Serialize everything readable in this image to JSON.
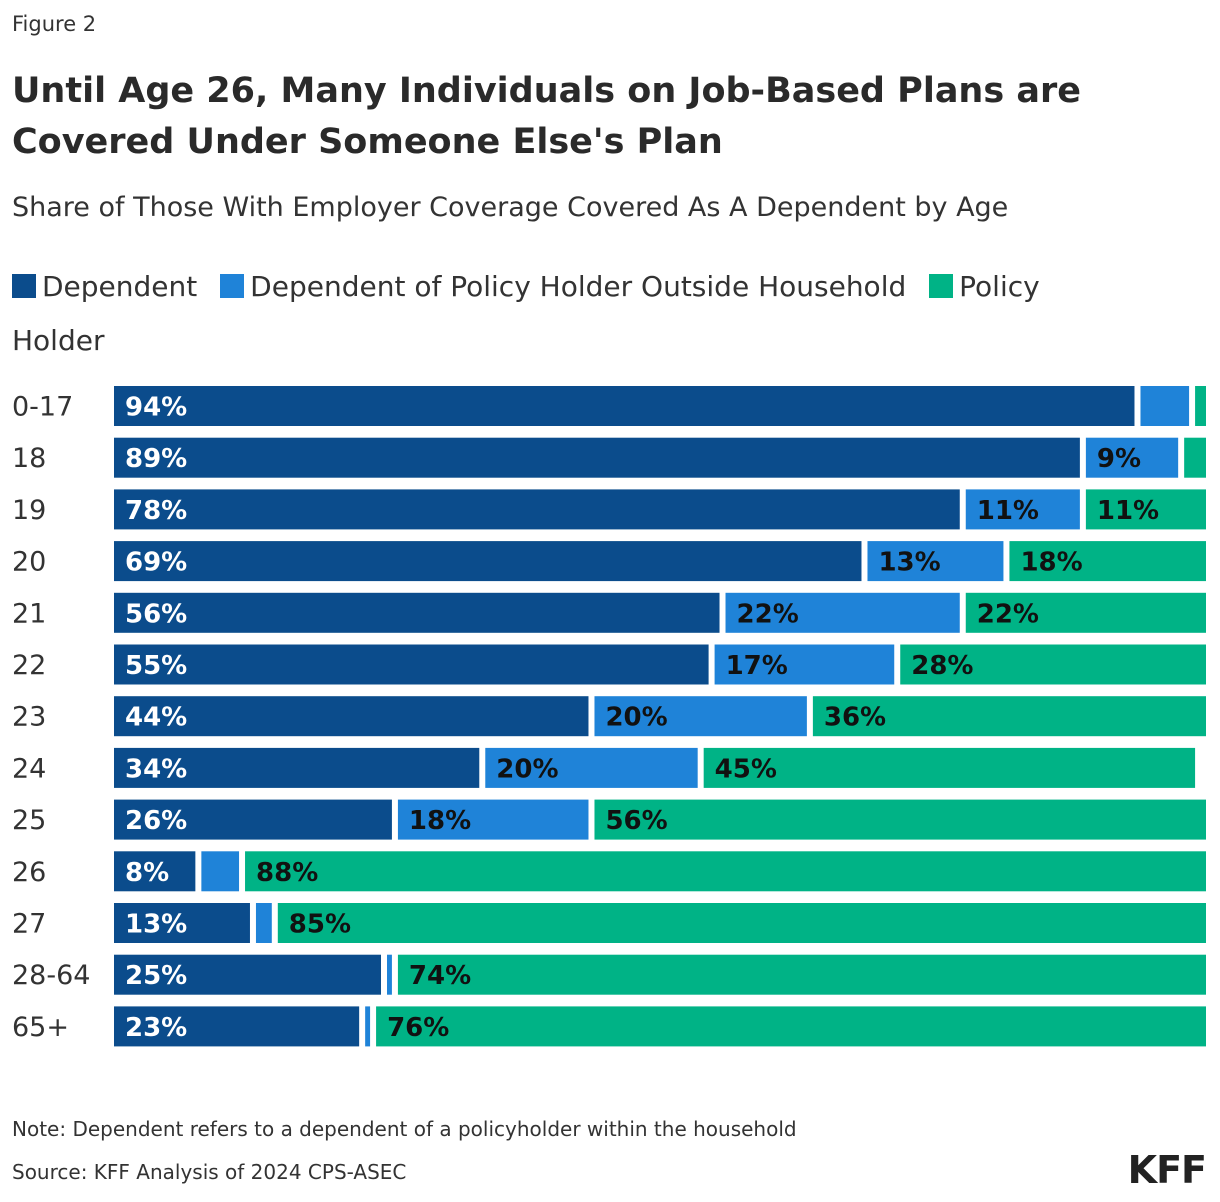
{
  "figure_label": "Figure 2",
  "chart_data": {
    "type": "stacked-bar-horizontal",
    "title": "Until Age 26, Many Individuals on Job-Based Plans are Covered Under Someone Else's Plan",
    "subtitle": "Share of Those With Employer Coverage Covered As A Dependent by Age",
    "categories": [
      "0-17",
      "18",
      "19",
      "20",
      "21",
      "22",
      "23",
      "24",
      "25",
      "26",
      "27",
      "28-64",
      "65+"
    ],
    "xlim": [
      0,
      100
    ],
    "series": [
      {
        "name": "Dependent",
        "color": "#0b4c8c",
        "values": [
          94,
          89,
          78,
          69,
          56,
          55,
          44,
          34,
          26,
          8,
          13,
          25,
          23
        ],
        "value_labels": [
          "94%",
          "89%",
          "78%",
          "69%",
          "56%",
          "55%",
          "44%",
          "34%",
          "26%",
          "8%",
          "13%",
          "25%",
          "23%"
        ]
      },
      {
        "name": "Dependent of Policy Holder Outside Household",
        "color": "#1f83d8",
        "values": [
          5,
          9,
          11,
          13,
          22,
          17,
          20,
          20,
          18,
          4,
          2,
          1,
          1
        ],
        "value_labels": [
          null,
          "9%",
          "11%",
          "13%",
          "22%",
          "17%",
          "20%",
          "20%",
          "18%",
          null,
          null,
          null,
          null
        ]
      },
      {
        "name": "Policy Holder",
        "color": "#00b386",
        "values": [
          1,
          2,
          11,
          18,
          22,
          28,
          36,
          45,
          56,
          88,
          85,
          74,
          76
        ],
        "value_labels": [
          null,
          null,
          "11%",
          "18%",
          "22%",
          "28%",
          "36%",
          "45%",
          "56%",
          "88%",
          "85%",
          "74%",
          "76%"
        ]
      }
    ],
    "note": "Note: Dependent refers to a dependent of a policyholder within the household",
    "source": "Source: KFF Analysis of 2024 CPS-ASEC",
    "logo": "KFF"
  }
}
